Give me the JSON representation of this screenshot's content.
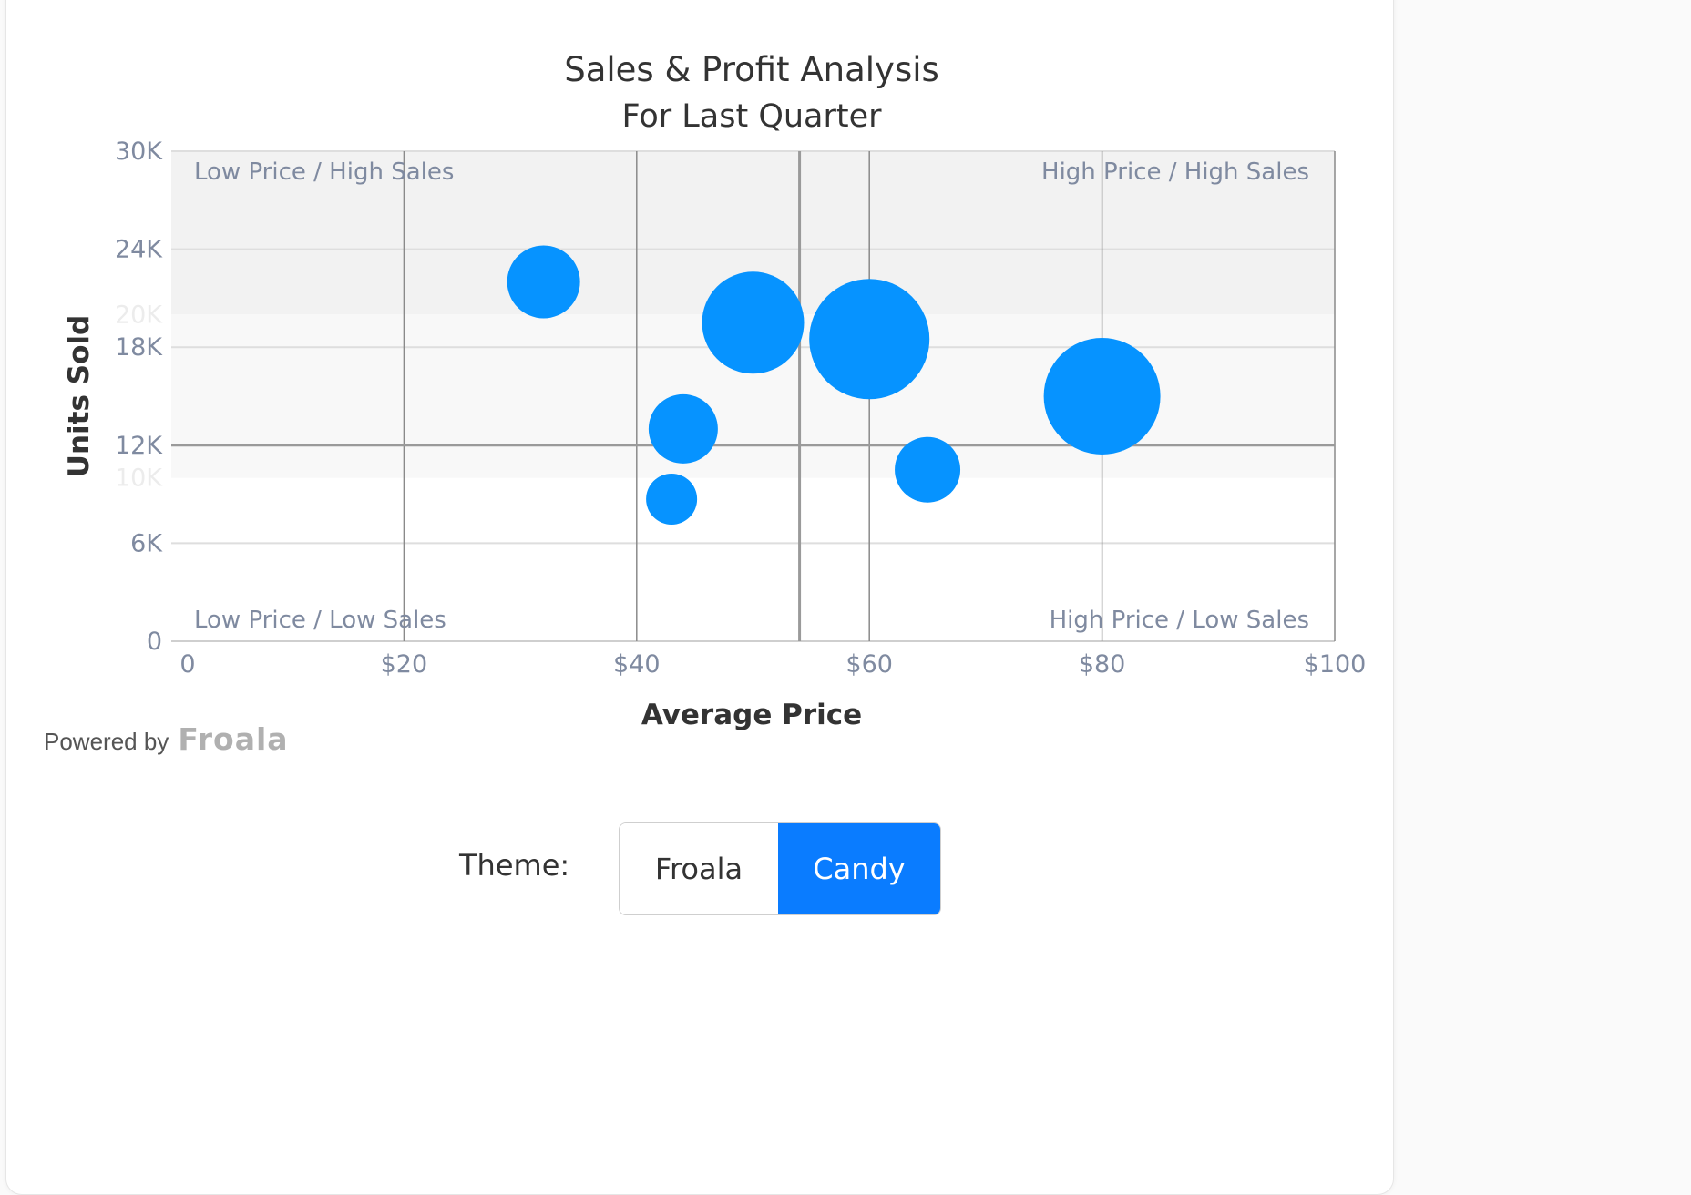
{
  "chart_data": {
    "type": "bubble",
    "title": "Sales & Profit Analysis",
    "subtitle": "For Last Quarter",
    "xlabel": "Average Price",
    "ylabel": "Units Sold",
    "xlim": [
      0,
      100
    ],
    "ylim": [
      0,
      30000
    ],
    "x_ticks": [
      "0",
      "$20",
      "$40",
      "$60",
      "$80",
      "$100"
    ],
    "y_ticks": [
      "0",
      "6K",
      "12K",
      "18K",
      "24K",
      "30K"
    ],
    "ghost_y_ticks": [
      "20K",
      "10K"
    ],
    "x_reference": 54,
    "y_reference": 12000,
    "quadrant_labels": {
      "top_left": "Low Price / High Sales",
      "top_right": "High Price / High Sales",
      "bottom_left": "Low Price / Low Sales",
      "bottom_right": "High Price / Low Sales"
    },
    "bubble_color": "#0693ff",
    "points": [
      {
        "x": 32,
        "y": 22000,
        "r": 40
      },
      {
        "x": 50,
        "y": 19500,
        "r": 56
      },
      {
        "x": 60,
        "y": 18500,
        "r": 66
      },
      {
        "x": 80,
        "y": 15000,
        "r": 64
      },
      {
        "x": 44,
        "y": 13000,
        "r": 38
      },
      {
        "x": 65,
        "y": 10500,
        "r": 36
      },
      {
        "x": 43,
        "y": 8700,
        "r": 28
      }
    ],
    "grid": true
  },
  "footer": {
    "powered_by": "Powered by",
    "brand": "Froala"
  },
  "theme": {
    "label": "Theme:",
    "options": [
      "Froala",
      "Candy"
    ],
    "selected": "Candy",
    "accent": "#0a7cff"
  }
}
